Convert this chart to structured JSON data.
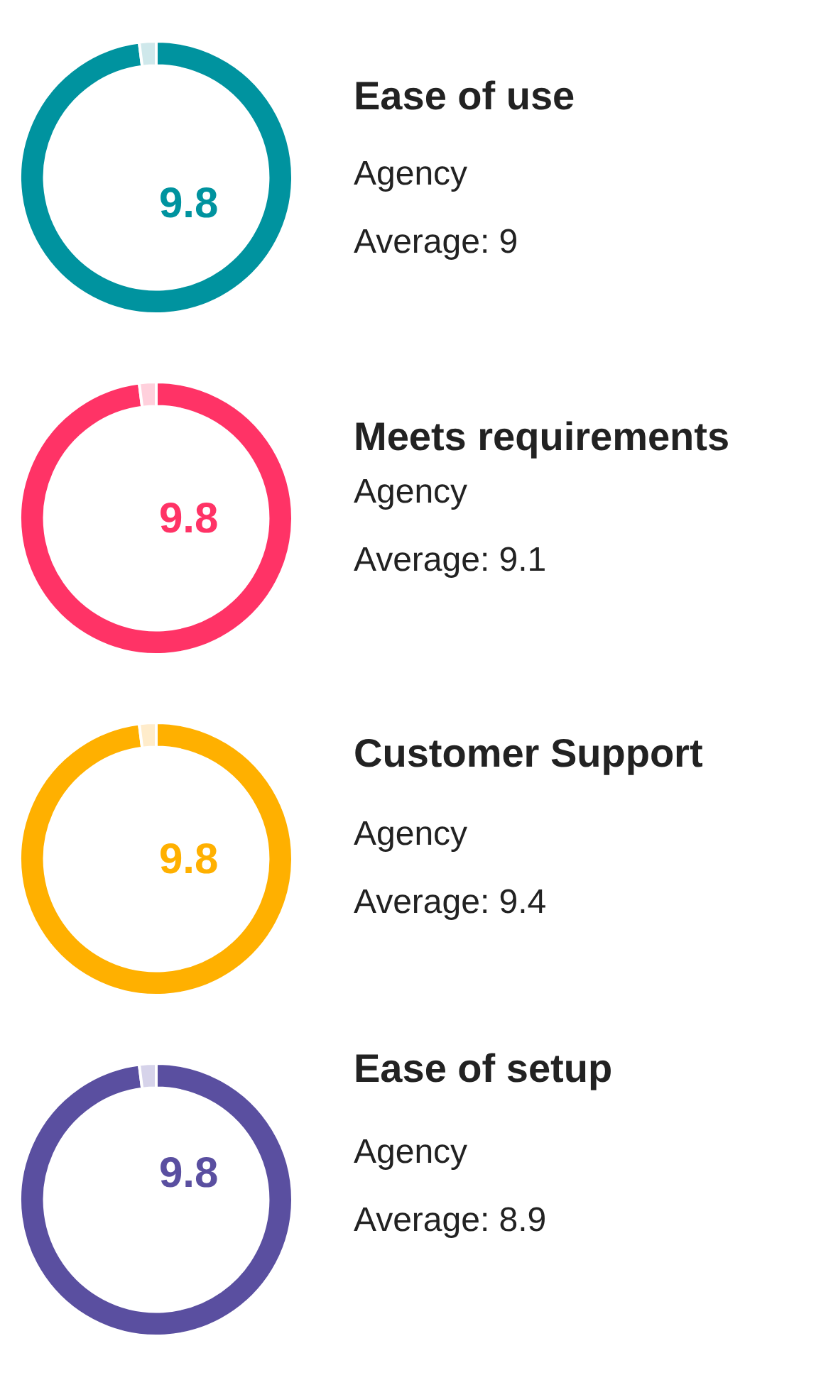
{
  "chart_data": [
    {
      "type": "donut",
      "title": "Ease of use",
      "subtitle": "Agency",
      "annotations": [
        "Average: 9"
      ],
      "categories": [
        null,
        null
      ],
      "values": [
        9.8,
        0.2
      ],
      "value_labels": [
        "9.8",
        null
      ],
      "colors": [
        "#00939f",
        "#cfe8eb"
      ]
    },
    {
      "type": "donut",
      "title": "Meets requirements",
      "subtitle": "Agency",
      "annotations": [
        "Average: 9.1"
      ],
      "categories": [
        null,
        null
      ],
      "values": [
        9.8,
        0.2
      ],
      "value_labels": [
        "9.8",
        null
      ],
      "colors": [
        "#ff3366",
        "#ffd0dc"
      ]
    },
    {
      "type": "donut",
      "title": "Customer Support",
      "subtitle": "Agency",
      "annotations": [
        "Average: 9.4"
      ],
      "categories": [
        null,
        null
      ],
      "values": [
        9.8,
        0.2
      ],
      "value_labels": [
        "9.8",
        null
      ],
      "colors": [
        "#ffb000",
        "#ffeccb"
      ]
    },
    {
      "type": "donut",
      "title": "Ease of setup",
      "subtitle": "Agency",
      "annotations": [
        "Average: 8.9"
      ],
      "categories": [
        null,
        null
      ],
      "values": [
        9.8,
        0.2
      ],
      "value_labels": [
        "9.8",
        null
      ],
      "colors": [
        "#5a4fa0",
        "#d6d3ea"
      ]
    }
  ]
}
